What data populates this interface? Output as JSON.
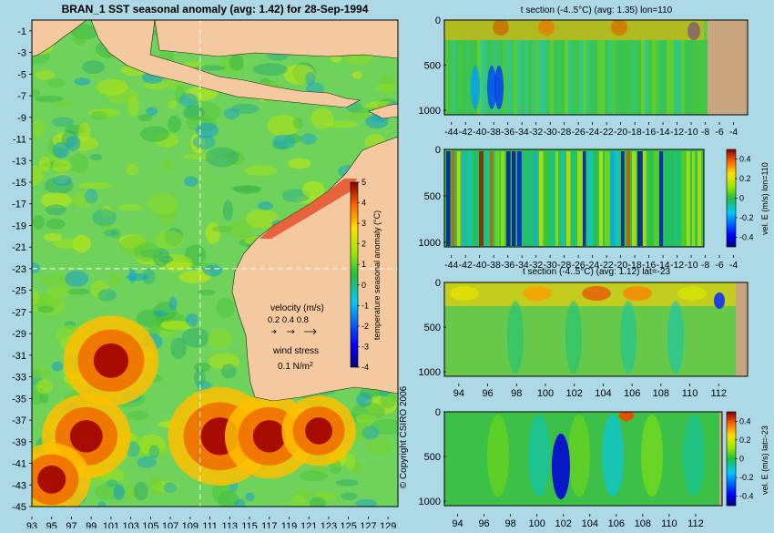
{
  "chart_data": [
    {
      "type": "heatmap",
      "id": "sst-map",
      "title": "BRAN_1  SST seasonal anomaly (avg: 1.42) for 28-Sep-1994",
      "x_ticks": [
        "93",
        "95",
        "97",
        "99",
        "101",
        "103",
        "105",
        "107",
        "109",
        "111",
        "113",
        "115",
        "117",
        "119",
        "121",
        "123",
        "125",
        "127",
        "129"
      ],
      "y_ticks": [
        "-1",
        "-3",
        "-5",
        "-7",
        "-9",
        "-11",
        "-13",
        "-15",
        "-17",
        "-19",
        "-21",
        "-23",
        "-25",
        "-27",
        "-29",
        "-31",
        "-33",
        "-35",
        "-37",
        "-39",
        "-41",
        "-43",
        "-45"
      ],
      "xlim": [
        93,
        130
      ],
      "ylim": [
        -45,
        0
      ],
      "section_lines": {
        "lon": 110,
        "lat": -23
      },
      "colorbar": {
        "label": "temperature seasonal anomaly (°C)",
        "ticks": [
          "5",
          "4",
          "3",
          "2",
          "1",
          "0",
          "-1",
          "-2",
          "-3",
          "-4"
        ],
        "range": [
          -4,
          5
        ]
      },
      "legend": {
        "velocity_label": "velocity (m/s)",
        "velocity_values": "0.2 0.4 0.8",
        "wind_label": "wind stress",
        "wind_value": "0.1 N/m",
        "wind_exp": "2"
      },
      "warm_regions": [
        {
          "lon": 101,
          "lat": -31.5,
          "r": 3.2
        },
        {
          "lon": 98.5,
          "lat": -38.5,
          "r": 3.0
        },
        {
          "lon": 95,
          "lat": -42.5,
          "r": 2.6
        },
        {
          "lon": 112,
          "lat": -38.5,
          "r": 3.5
        },
        {
          "lon": 117,
          "lat": -38.5,
          "r": 3.0
        },
        {
          "lon": 122,
          "lat": -38,
          "r": 2.5
        }
      ]
    },
    {
      "type": "heatmap",
      "id": "t-section-lon",
      "title": "t section (-4..5°C) (avg: 1.35) lon=110",
      "x_ticks": [
        "-44",
        "-42",
        "-40",
        "-38",
        "-36",
        "-34",
        "-32",
        "-30",
        "-28",
        "-26",
        "-24",
        "-22",
        "-20",
        "-18",
        "-16",
        "-14",
        "-12",
        "-10",
        "-8",
        "-6",
        "-4"
      ],
      "y_ticks": [
        "0",
        "500",
        "1000"
      ],
      "xlim": [
        -45,
        -2
      ],
      "ylim": [
        1050,
        0
      ]
    },
    {
      "type": "heatmap",
      "id": "vel-e-lon",
      "title": "",
      "x_ticks": [
        "-44",
        "-42",
        "-40",
        "-38",
        "-36",
        "-34",
        "-32",
        "-30",
        "-28",
        "-26",
        "-24",
        "-22",
        "-20",
        "-18",
        "-16",
        "-14",
        "-12",
        "-10",
        "-8",
        "-6",
        "-4"
      ],
      "y_ticks": [
        "0",
        "500",
        "1000"
      ],
      "xlim": [
        -45,
        -2
      ],
      "ylim": [
        1050,
        0
      ],
      "colorbar": {
        "label": "vel. E (m/s) lon=110",
        "ticks": [
          "0.4",
          "0.2",
          "0",
          "-0.2",
          "-0.4"
        ],
        "range": [
          -0.5,
          0.5
        ]
      }
    },
    {
      "type": "heatmap",
      "id": "t-section-lat",
      "title": "t section (-4..5°C) (avg: 1.12) lat=-23",
      "x_ticks": [
        "94",
        "96",
        "98",
        "100",
        "102",
        "104",
        "106",
        "108",
        "110",
        "112"
      ],
      "y_ticks": [
        "0",
        "500",
        "1000"
      ],
      "xlim": [
        93,
        114
      ],
      "ylim": [
        1050,
        0
      ]
    },
    {
      "type": "heatmap",
      "id": "vel-e-lat",
      "title": "",
      "x_ticks": [
        "94",
        "96",
        "98",
        "100",
        "102",
        "104",
        "106",
        "108",
        "110",
        "112"
      ],
      "y_ticks": [
        "0",
        "500",
        "1000"
      ],
      "xlim": [
        93,
        114
      ],
      "ylim": [
        1050,
        0
      ],
      "colorbar": {
        "label": "vel. E (m/s) lat=-23",
        "ticks": [
          "0.4",
          "0.2",
          "0",
          "-0.2",
          "-0.4"
        ],
        "range": [
          -0.5,
          0.5
        ]
      }
    }
  ],
  "copyright": "© Copyright CSIRO 2006"
}
